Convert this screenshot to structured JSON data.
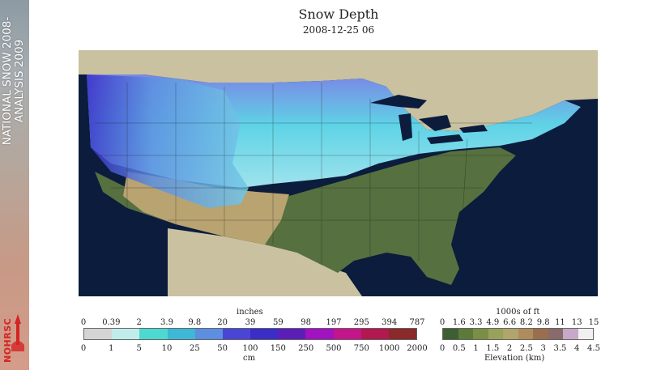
{
  "banner": {
    "line1": "NATIONAL SNOW 2008-",
    "line2": "ANALYSIS 2009",
    "logo_text": "NOHRSC"
  },
  "header": {
    "title": "Snow Depth",
    "date": "2008-12-25 06"
  },
  "map": {
    "icon": "snow-depth-map",
    "ocean_color": "#0b1c3d",
    "land_color": "#c9c1a0"
  },
  "snow_legend": {
    "top_label": "inches",
    "bottom_label": "cm",
    "inches_ticks": [
      "0",
      "0.39",
      "2",
      "3.9",
      "9.8",
      "20",
      "39",
      "59",
      "98",
      "197",
      "295",
      "394",
      "787"
    ],
    "cm_ticks": [
      "0",
      "1",
      "5",
      "10",
      "25",
      "50",
      "100",
      "150",
      "250",
      "500",
      "750",
      "1000",
      "2000"
    ],
    "colors": [
      "#d4d4d4",
      "#c0ecec",
      "#4dd9d0",
      "#3fb7d6",
      "#5c8fe0",
      "#4b45d6",
      "#3a2ec7",
      "#5b1fb8",
      "#a112c0",
      "#c5158a",
      "#b1194f",
      "#8a2a2a"
    ]
  },
  "elevation_legend": {
    "top_label": "1000s of ft",
    "bottom_label": "Elevation (km)",
    "ft_ticks": [
      "0",
      "1.6",
      "3.3",
      "4.9",
      "6.6",
      "8.2",
      "9.8",
      "11",
      "13",
      "15"
    ],
    "km_ticks": [
      "0",
      "0.5",
      "1",
      "1.5",
      "2",
      "2.5",
      "3",
      "3.5",
      "4",
      "4.5"
    ],
    "colors": [
      "#3e5f33",
      "#5c7a3a",
      "#7a8e46",
      "#9aa15a",
      "#b0a56a",
      "#b08c5c",
      "#9a6e4e",
      "#8a6a6a",
      "#c8a8c8",
      "#f0f0f0"
    ]
  }
}
